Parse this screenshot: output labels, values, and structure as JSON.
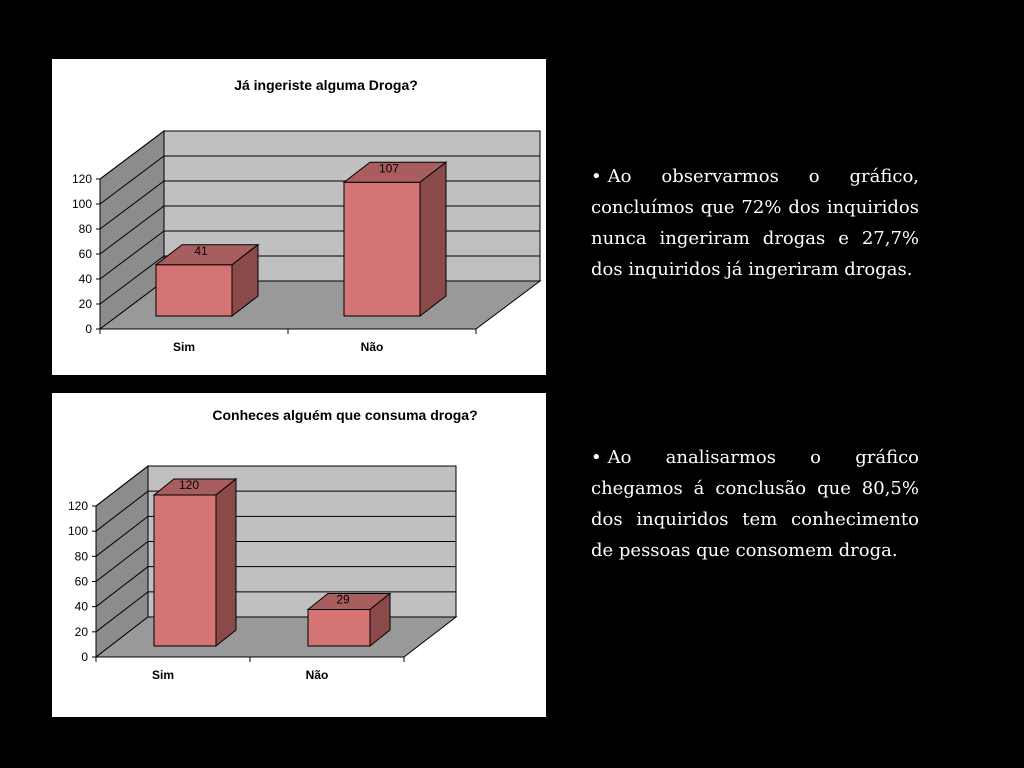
{
  "chart_data": [
    {
      "type": "bar",
      "title": "Já ingeriste alguma Droga?",
      "categories": [
        "Sim",
        "Não"
      ],
      "values": [
        41,
        107
      ],
      "data_labels": [
        "41",
        "107"
      ],
      "ylim": [
        0,
        120
      ],
      "yticks": [
        "0",
        "20",
        "40",
        "60",
        "80",
        "100",
        "120"
      ],
      "grid": true,
      "style": "3d",
      "colors": {
        "bar_front": "#d47474",
        "bar_top": "#a85e5e",
        "bar_side": "#8a4a4a",
        "wall": "#c0c0c0",
        "floor": "#999999"
      }
    },
    {
      "type": "bar",
      "title": "Conheces alguém que consuma droga?",
      "categories": [
        "Sim",
        "Não"
      ],
      "values": [
        120,
        29
      ],
      "data_labels": [
        "120",
        "29"
      ],
      "ylim": [
        0,
        120
      ],
      "yticks": [
        "0",
        "20",
        "40",
        "60",
        "80",
        "100",
        "120"
      ],
      "grid": true,
      "style": "3d",
      "colors": {
        "bar_front": "#d47474",
        "bar_top": "#a85e5e",
        "bar_side": "#8a4a4a",
        "wall": "#c0c0c0",
        "floor": "#999999"
      }
    }
  ],
  "text": {
    "bullet": "•",
    "paragraph1": "Ao observarmos o gráfico, concluímos que 72% dos inquiridos nunca ingeriram drogas e 27,7% dos inquiridos já ingeriram drogas.",
    "paragraph2": "Ao analisarmos o gráfico chegamos á conclusão que 80,5% dos inquiridos tem conhecimento de pessoas que consomem droga."
  }
}
